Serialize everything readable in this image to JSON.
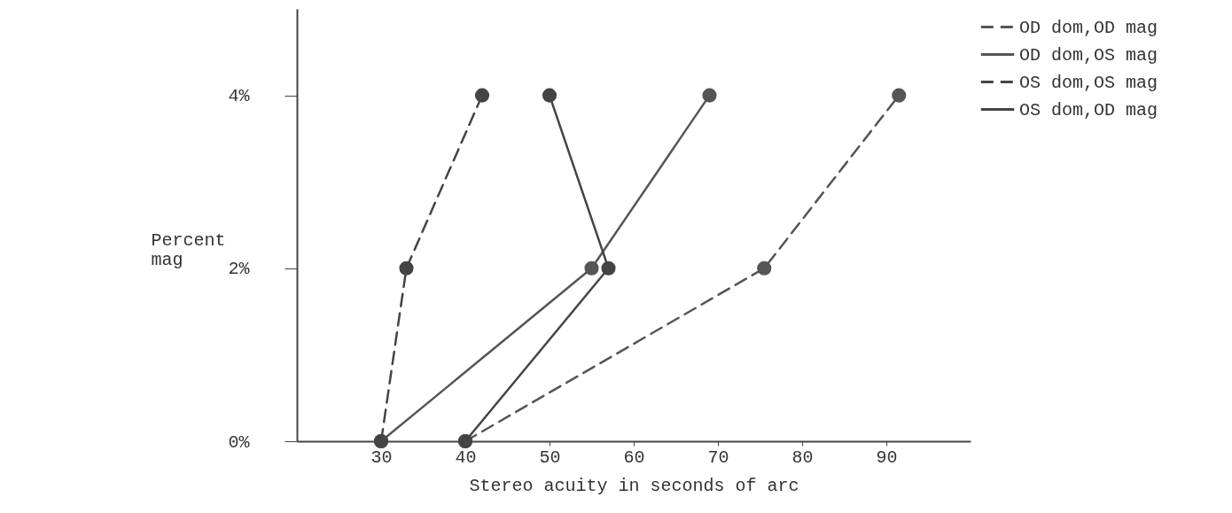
{
  "chart_data": {
    "type": "line",
    "xlabel": "Stereo acuity in seconds of arc",
    "ylabel": "Percent mag",
    "xlim": [
      20,
      100
    ],
    "xticks": [
      30,
      40,
      50,
      60,
      70,
      80,
      90
    ],
    "ylim": [
      0,
      5
    ],
    "yticks": [
      {
        "value": 0,
        "label": "0%"
      },
      {
        "value": 2,
        "label": "2%"
      },
      {
        "value": 4,
        "label": "4%"
      }
    ],
    "grid": false,
    "legend": "right",
    "marker": "circle",
    "series": [
      {
        "name": "OD dom,OD mag",
        "color": "#555555",
        "line_style": "dashed",
        "x": [
          40,
          75.5,
          91.5
        ],
        "values": [
          0,
          2,
          4
        ]
      },
      {
        "name": "OD dom,OS mag",
        "color": "#555555",
        "line_style": "solid",
        "x": [
          30,
          55,
          69
        ],
        "values": [
          0,
          2,
          4
        ]
      },
      {
        "name": "OS dom,OS mag",
        "color": "#444444",
        "line_style": "dashed",
        "x": [
          30,
          33,
          42
        ],
        "values": [
          0,
          2,
          4
        ]
      },
      {
        "name": "OS dom,OD mag",
        "color": "#444444",
        "line_style": "solid",
        "x": [
          40,
          57,
          50
        ],
        "values": [
          0,
          2,
          4
        ]
      }
    ]
  }
}
